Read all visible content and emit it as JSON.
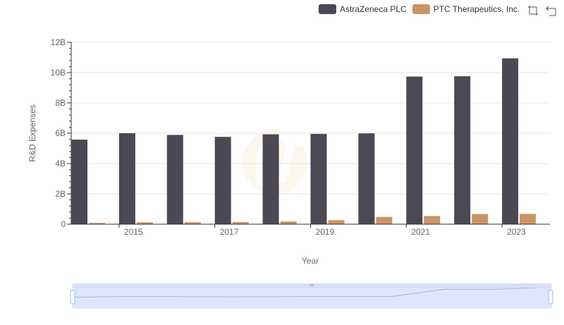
{
  "chart_data": {
    "type": "bar",
    "categories": [
      "2014",
      "2015",
      "2016",
      "2017",
      "2018",
      "2019",
      "2020",
      "2021",
      "2022",
      "2023"
    ],
    "x_tick_labels": [
      "2015",
      "2017",
      "2019",
      "2021",
      "2023"
    ],
    "series": [
      {
        "name": "AstraZeneca PLC",
        "color": "#4a4954",
        "values": [
          5.58,
          6.0,
          5.89,
          5.76,
          5.93,
          5.96,
          5.99,
          9.74,
          9.76,
          10.94
        ]
      },
      {
        "name": "PTC Therapeutics, Inc.",
        "color": "#c99566",
        "values": [
          0.08,
          0.12,
          0.13,
          0.14,
          0.18,
          0.27,
          0.48,
          0.54,
          0.67,
          0.68
        ]
      }
    ],
    "y_ticks": [
      "0",
      "2B",
      "4B",
      "6B",
      "8B",
      "10B",
      "12B"
    ],
    "ylim": [
      0,
      12
    ],
    "y_unit": "billions",
    "xlabel": "Year",
    "ylabel": "R&D Expenses",
    "legend_position": "top-right",
    "grid": true
  },
  "slider": {
    "handle_icon": "grip-icon"
  },
  "toolbar": {
    "zoom_icon": "zoom-select-icon",
    "reset_icon": "zoom-reset-icon"
  }
}
